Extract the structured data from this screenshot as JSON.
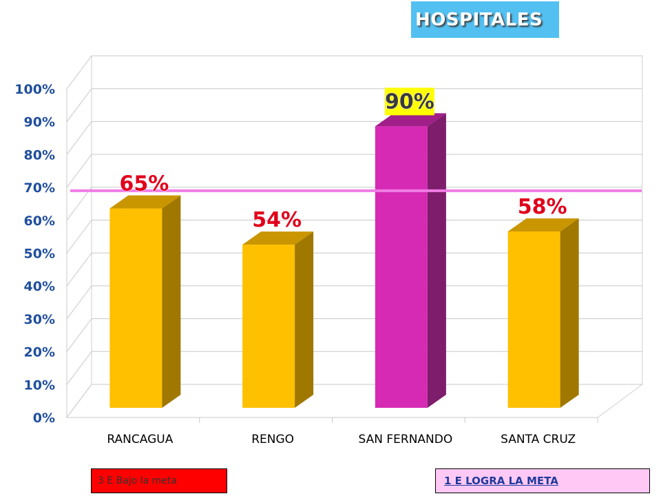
{
  "title": "HOSPITALES",
  "legend": {
    "below_goal": "3 E Bajo la meta",
    "achieved_goal": "1 E  LOGRA LA META"
  },
  "colors": {
    "below_goal_bar": "#ffc000",
    "achieved_goal_bar": "#d62ab5",
    "goal_line": "#f07de6",
    "label_below": "#e0001b",
    "label_achieved": "#3a3a3a",
    "label_achieved_background": "#ffff00",
    "title_background": "#53c0f2",
    "axis_text": "#1f4e9c"
  },
  "chart_data": {
    "type": "bar",
    "style": "3d",
    "title": "",
    "xlabel": "",
    "ylabel": "",
    "categories": [
      "RANCAGUA",
      "RENGO",
      "SAN FERNANDO",
      "SANTA CRUZ"
    ],
    "values": [
      65,
      54,
      90,
      58
    ],
    "data_labels": [
      "65%",
      "54%",
      "90%",
      "58%"
    ],
    "achieved": [
      false,
      false,
      true,
      false
    ],
    "goal_value": 69,
    "ylim": [
      0,
      100
    ],
    "yticks": [
      "0%",
      "10%",
      "20%",
      "30%",
      "40%",
      "50%",
      "60%",
      "70%",
      "80%",
      "90%",
      "100%"
    ],
    "grid": true,
    "legend": "bottom"
  }
}
